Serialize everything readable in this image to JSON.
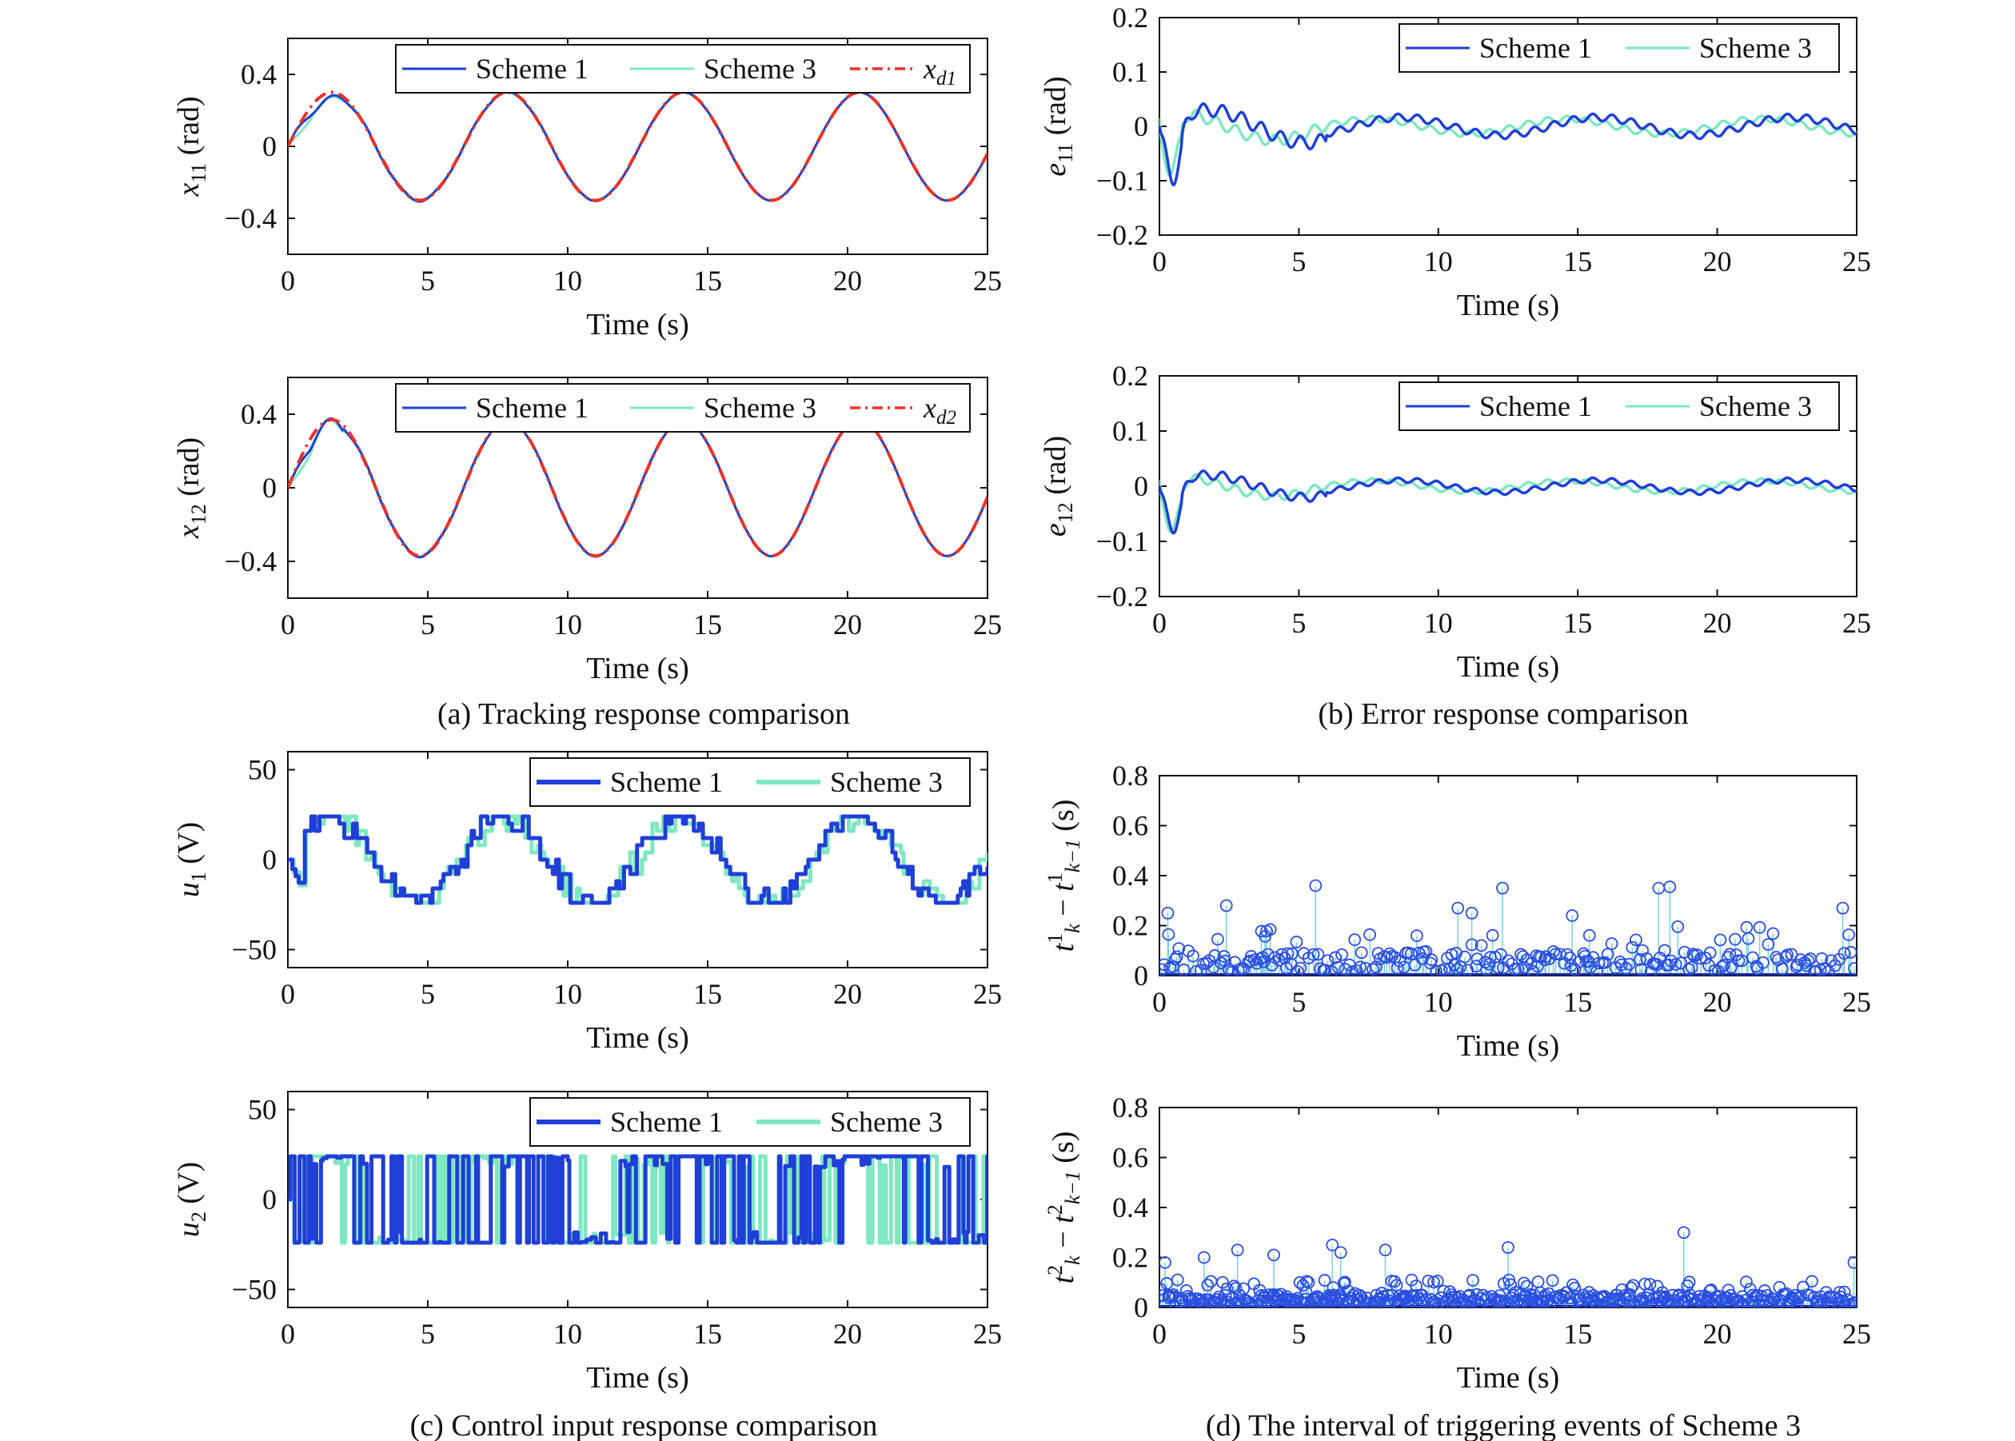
{
  "captions": {
    "a": "(a) Tracking response comparison",
    "b": "(b) Error response comparison",
    "c": "(c) Control input response comparison",
    "d": "(d) The interval of triggering events of Scheme 3"
  },
  "colors": {
    "scheme1": "#1f3fd6",
    "scheme3": "#7ee8c0",
    "reference": "#e8332a",
    "stem": "#7ed0e0",
    "marker": "#2a4fe0"
  },
  "chart_data": [
    {
      "id": "x11",
      "type": "line",
      "ylabel": {
        "var": "x",
        "sub": "11",
        "unit": " (rad)"
      },
      "xlabel": "Time (s)",
      "xlim": [
        0,
        25
      ],
      "ylim": [
        -0.6,
        0.6
      ],
      "xticks": [
        0,
        5,
        10,
        15,
        20,
        25
      ],
      "xtick_labels": [
        "0",
        "5",
        "10",
        "15",
        "20",
        "25"
      ],
      "yticks": [
        -0.4,
        0,
        0.4
      ],
      "ytick_labels": [
        "−0.4",
        "0",
        "0.4"
      ],
      "legend": {
        "position": "top-right",
        "entries": [
          {
            "name": "Scheme 1",
            "style": "solid-blue"
          },
          {
            "name": "Scheme 3",
            "style": "solid-cyan"
          },
          {
            "name": "x_d1",
            "var": "x",
            "sub": "d1",
            "style": "dashdot-red"
          }
        ]
      },
      "series": [
        {
          "name": "Scheme 1",
          "function": "0.3*sin(t) with transient",
          "amplitude": 0.3,
          "omega": 1.0
        },
        {
          "name": "Scheme 3",
          "function": "0.3*sin(t) with transient",
          "amplitude": 0.3,
          "omega": 1.0
        },
        {
          "name": "x_d1",
          "function": "0.3*sin(t)",
          "amplitude": 0.3,
          "omega": 1.0
        }
      ]
    },
    {
      "id": "x12",
      "type": "line",
      "ylabel": {
        "var": "x",
        "sub": "12",
        "unit": " (rad)"
      },
      "xlabel": "Time (s)",
      "xlim": [
        0,
        25
      ],
      "ylim": [
        -0.6,
        0.6
      ],
      "xticks": [
        0,
        5,
        10,
        15,
        20,
        25
      ],
      "xtick_labels": [
        "0",
        "5",
        "10",
        "15",
        "20",
        "25"
      ],
      "yticks": [
        -0.4,
        0,
        0.4
      ],
      "ytick_labels": [
        "−0.4",
        "0",
        "0.4"
      ],
      "legend": {
        "position": "top-right",
        "entries": [
          {
            "name": "Scheme 1",
            "style": "solid-blue"
          },
          {
            "name": "Scheme 3",
            "style": "solid-cyan"
          },
          {
            "name": "x_d2",
            "var": "x",
            "sub": "d2",
            "style": "dashdot-red"
          }
        ]
      },
      "series": [
        {
          "name": "Scheme 1",
          "function": "0.37*sin(t) with transient",
          "amplitude": 0.37,
          "omega": 1.0
        },
        {
          "name": "Scheme 3",
          "function": "0.37*sin(t) with transient",
          "amplitude": 0.37,
          "omega": 1.0
        },
        {
          "name": "x_d2",
          "function": "0.37*sin(t)",
          "amplitude": 0.37,
          "omega": 1.0
        }
      ]
    },
    {
      "id": "e11",
      "type": "line",
      "ylabel": {
        "var": "e",
        "sub": "11",
        "unit": " (rad)"
      },
      "xlabel": "Time (s)",
      "xlim": [
        0,
        25
      ],
      "ylim": [
        -0.2,
        0.2
      ],
      "xticks": [
        0,
        5,
        10,
        15,
        20,
        25
      ],
      "xtick_labels": [
        "0",
        "5",
        "10",
        "15",
        "20",
        "25"
      ],
      "yticks": [
        -0.2,
        -0.1,
        0,
        0.1,
        0.2
      ],
      "ytick_labels": [
        "−0.2",
        "−0.1",
        "0",
        "0.1",
        "0.2"
      ],
      "legend": {
        "position": "top-right",
        "entries": [
          {
            "name": "Scheme 1",
            "style": "solid-blue"
          },
          {
            "name": "Scheme 3",
            "style": "solid-cyan"
          }
        ]
      },
      "series": [
        {
          "name": "Scheme 1",
          "min": -0.1,
          "min_at": 0.5,
          "envelope": 0.03
        },
        {
          "name": "Scheme 3",
          "min": -0.09,
          "min_at": 0.4,
          "envelope": 0.025
        }
      ]
    },
    {
      "id": "e12",
      "type": "line",
      "ylabel": {
        "var": "e",
        "sub": "12",
        "unit": " (rad)"
      },
      "xlabel": "Time (s)",
      "xlim": [
        0,
        25
      ],
      "ylim": [
        -0.2,
        0.2
      ],
      "xticks": [
        0,
        5,
        10,
        15,
        20,
        25
      ],
      "xtick_labels": [
        "0",
        "5",
        "10",
        "15",
        "20",
        "25"
      ],
      "yticks": [
        -0.2,
        -0.1,
        0,
        0.1,
        0.2
      ],
      "ytick_labels": [
        "−0.2",
        "−0.1",
        "0",
        "0.1",
        "0.2"
      ],
      "legend": {
        "position": "top-right",
        "entries": [
          {
            "name": "Scheme 1",
            "style": "solid-blue"
          },
          {
            "name": "Scheme 3",
            "style": "solid-cyan"
          }
        ]
      },
      "series": [
        {
          "name": "Scheme 1",
          "min": -0.08,
          "min_at": 0.5,
          "envelope": 0.02
        },
        {
          "name": "Scheme 3",
          "min": -0.085,
          "min_at": 0.45,
          "envelope": 0.018
        }
      ]
    },
    {
      "id": "u1",
      "type": "line",
      "ylabel": {
        "var": "u",
        "sub": "1",
        "unit": " (V)"
      },
      "xlabel": "Time (s)",
      "xlim": [
        0,
        25
      ],
      "ylim": [
        -60,
        60
      ],
      "xticks": [
        0,
        5,
        10,
        15,
        20,
        25
      ],
      "xtick_labels": [
        "0",
        "5",
        "10",
        "15",
        "20",
        "25"
      ],
      "yticks": [
        -50,
        0,
        50
      ],
      "ytick_labels": [
        "−50",
        "0",
        "50"
      ],
      "legend": {
        "position": "top-right",
        "entries": [
          {
            "name": "Scheme 1",
            "style": "thick-blue"
          },
          {
            "name": "Scheme 3",
            "style": "thick-cyan"
          }
        ]
      },
      "series": [
        {
          "name": "Scheme 1",
          "shape": "staircase ~22*sin(t)",
          "max": 24,
          "min": -24
        },
        {
          "name": "Scheme 3",
          "shape": "staircase ~22*sin(t)",
          "max": 24,
          "min": -24
        }
      ]
    },
    {
      "id": "u2",
      "type": "line",
      "ylabel": {
        "var": "u",
        "sub": "2",
        "unit": " (V)"
      },
      "xlabel": "Time (s)",
      "xlim": [
        0,
        25
      ],
      "ylim": [
        -60,
        60
      ],
      "xticks": [
        0,
        5,
        10,
        15,
        20,
        25
      ],
      "xtick_labels": [
        "0",
        "5",
        "10",
        "15",
        "20",
        "25"
      ],
      "yticks": [
        -50,
        0,
        50
      ],
      "ytick_labels": [
        "−50",
        "0",
        "50"
      ],
      "legend": {
        "position": "top-right",
        "entries": [
          {
            "name": "Scheme 1",
            "style": "thick-blue"
          },
          {
            "name": "Scheme 3",
            "style": "thick-cyan"
          }
        ]
      },
      "series": [
        {
          "name": "Scheme 1",
          "shape": "switching between +24 and -24",
          "max": 24,
          "min": -24
        },
        {
          "name": "Scheme 3",
          "shape": "switching between +24 and -24",
          "max": 24,
          "min": -24
        }
      ]
    },
    {
      "id": "dt1",
      "type": "scatter",
      "ylabel": {
        "kind": "interval",
        "sup": "1"
      },
      "xlabel": "Time (s)",
      "xlim": [
        0,
        25
      ],
      "ylim": [
        0,
        0.8
      ],
      "xticks": [
        0,
        5,
        10,
        15,
        20,
        25
      ],
      "xtick_labels": [
        "0",
        "5",
        "10",
        "15",
        "20",
        "25"
      ],
      "yticks": [
        0,
        0.2,
        0.4,
        0.6,
        0.8
      ],
      "ytick_labels": [
        "0",
        "0.2",
        "0.4",
        "0.6",
        "0.8"
      ],
      "series": [
        {
          "name": "interval",
          "count": 230,
          "max": 0.36,
          "typical": 0.07
        }
      ],
      "peaks": [
        [
          5.6,
          0.36
        ],
        [
          12.3,
          0.35
        ],
        [
          17.9,
          0.35
        ],
        [
          18.3,
          0.355
        ],
        [
          2.4,
          0.28
        ],
        [
          10.7,
          0.27
        ],
        [
          24.5,
          0.27
        ],
        [
          11.2,
          0.25
        ],
        [
          0.3,
          0.25
        ],
        [
          14.8,
          0.24
        ]
      ]
    },
    {
      "id": "dt2",
      "type": "scatter",
      "ylabel": {
        "kind": "interval",
        "sup": "2"
      },
      "xlabel": "Time (s)",
      "xlim": [
        0,
        25
      ],
      "ylim": [
        0,
        0.8
      ],
      "xticks": [
        0,
        5,
        10,
        15,
        20,
        25
      ],
      "xtick_labels": [
        "0",
        "5",
        "10",
        "15",
        "20",
        "25"
      ],
      "yticks": [
        0,
        0.2,
        0.4,
        0.6,
        0.8
      ],
      "ytick_labels": [
        "0",
        "0.2",
        "0.4",
        "0.6",
        "0.8"
      ],
      "series": [
        {
          "name": "interval",
          "count": 480,
          "max": 0.3,
          "typical": 0.04
        }
      ],
      "peaks": [
        [
          18.8,
          0.3
        ],
        [
          6.2,
          0.25
        ],
        [
          12.5,
          0.24
        ],
        [
          2.8,
          0.23
        ],
        [
          8.1,
          0.23
        ],
        [
          6.5,
          0.22
        ],
        [
          4.1,
          0.21
        ],
        [
          1.6,
          0.2
        ],
        [
          24.9,
          0.18
        ],
        [
          0.2,
          0.18
        ]
      ]
    }
  ]
}
